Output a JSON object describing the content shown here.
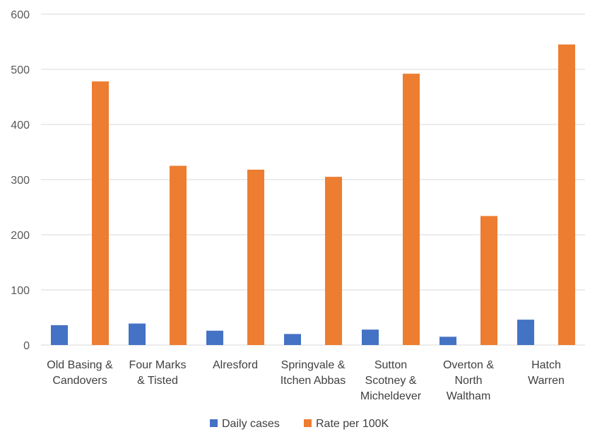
{
  "chart_data": {
    "type": "bar",
    "categories": [
      [
        "Old Basing &",
        "Candovers"
      ],
      [
        "Four Marks",
        "& Tisted"
      ],
      [
        "Alresford"
      ],
      [
        "Springvale &",
        "Itchen Abbas"
      ],
      [
        "Sutton",
        "Scotney &",
        "Micheldever"
      ],
      [
        "Overton &",
        "North",
        "Waltham"
      ],
      [
        "Hatch",
        "Warren"
      ]
    ],
    "series": [
      {
        "name": "Daily cases",
        "color": "#4472c4",
        "values": [
          36,
          39,
          26,
          20,
          28,
          15,
          46
        ]
      },
      {
        "name": "Rate per 100K",
        "color": "#ed7d31",
        "values": [
          478,
          325,
          318,
          305,
          492,
          234,
          545
        ]
      }
    ],
    "ylim": [
      0,
      600
    ],
    "yticks": [
      0,
      100,
      200,
      300,
      400,
      500,
      600
    ],
    "grid": true,
    "legend": "bottom-center",
    "title": "",
    "xlabel": "",
    "ylabel": ""
  }
}
